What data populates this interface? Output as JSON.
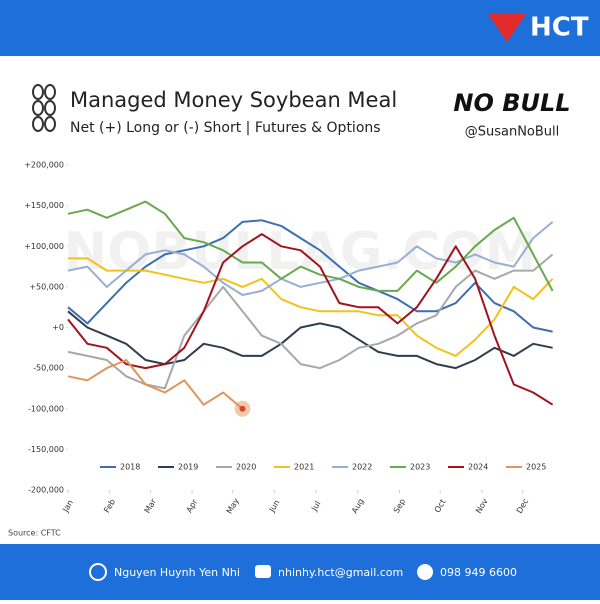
{
  "brand": {
    "logo": "HCT",
    "author": "Nguyen Huynh Yen Nhi",
    "email": "nhinhy.hct@gmail.com",
    "phone": "098 949 6600",
    "nobull": "NO BULL",
    "handle": "@SusanNoBull",
    "watermark": "NOBULLAG.COM",
    "source": "Source: CFTC"
  },
  "chart_data": {
    "type": "line",
    "title": "Managed Money Soybean Meal",
    "subtitle": "Net (+) Long or (-) Short | Futures & Options",
    "x": [
      0,
      2,
      4,
      6,
      8,
      10,
      12,
      14,
      16,
      18,
      20,
      22,
      24,
      26,
      28,
      30,
      32,
      34,
      36,
      38,
      40,
      42,
      44,
      46,
      48,
      50
    ],
    "xlim": [
      0,
      52
    ],
    "xticks": [
      {
        "value": 0,
        "label": "Jan"
      },
      {
        "value": 4.3,
        "label": "Feb"
      },
      {
        "value": 8.5,
        "label": "Mar"
      },
      {
        "value": 12.8,
        "label": "Apr"
      },
      {
        "value": 17,
        "label": "May"
      },
      {
        "value": 21.3,
        "label": "Jun"
      },
      {
        "value": 25.6,
        "label": "Jul"
      },
      {
        "value": 29.9,
        "label": "Aug"
      },
      {
        "value": 34.2,
        "label": "Sep"
      },
      {
        "value": 38.4,
        "label": "Oct"
      },
      {
        "value": 42.7,
        "label": "Nov"
      },
      {
        "value": 46.9,
        "label": "Dec"
      }
    ],
    "ylim": [
      -200000,
      200000
    ],
    "yticks": [
      {
        "value": 200000,
        "label": "+200,000"
      },
      {
        "value": 150000,
        "label": "+150,000"
      },
      {
        "value": 100000,
        "label": "+100,000"
      },
      {
        "value": 50000,
        "label": "+50,000"
      },
      {
        "value": 0,
        "label": "+0"
      },
      {
        "value": -50000,
        "label": "-50,000"
      },
      {
        "value": -100000,
        "label": "-100,000"
      },
      {
        "value": -150000,
        "label": "-150,000"
      },
      {
        "value": -200000,
        "label": "-200,000"
      }
    ],
    "legend": "bottom",
    "series": [
      {
        "name": "2018",
        "color": "#3d6fb0",
        "values": [
          25000,
          5000,
          30000,
          55000,
          75000,
          90000,
          95000,
          100000,
          110000,
          130000,
          132000,
          125000,
          110000,
          95000,
          75000,
          55000,
          45000,
          35000,
          20000,
          20000,
          30000,
          55000,
          30000,
          20000,
          0,
          -5000
        ]
      },
      {
        "name": "2019",
        "color": "#2f3e4f",
        "values": [
          20000,
          0,
          -10000,
          -20000,
          -40000,
          -45000,
          -40000,
          -20000,
          -25000,
          -35000,
          -35000,
          -20000,
          0,
          5000,
          0,
          -15000,
          -30000,
          -35000,
          -35000,
          -45000,
          -50000,
          -40000,
          -25000,
          -35000,
          -20000,
          -25000
        ]
      },
      {
        "name": "2020",
        "color": "#a8a8a8",
        "values": [
          -30000,
          -35000,
          -40000,
          -60000,
          -70000,
          -75000,
          -10000,
          20000,
          50000,
          20000,
          -10000,
          -20000,
          -45000,
          -50000,
          -40000,
          -25000,
          -20000,
          -10000,
          5000,
          15000,
          50000,
          70000,
          60000,
          70000,
          70000,
          90000
        ]
      },
      {
        "name": "2021",
        "color": "#f2c21b",
        "values": [
          85000,
          85000,
          70000,
          70000,
          70000,
          65000,
          60000,
          55000,
          60000,
          50000,
          60000,
          35000,
          25000,
          20000,
          20000,
          20000,
          15000,
          15000,
          -10000,
          -25000,
          -35000,
          -15000,
          10000,
          50000,
          35000,
          60000
        ]
      },
      {
        "name": "2022",
        "color": "#98aed3",
        "values": [
          70000,
          75000,
          50000,
          70000,
          90000,
          95000,
          90000,
          75000,
          55000,
          40000,
          45000,
          60000,
          50000,
          55000,
          60000,
          70000,
          75000,
          80000,
          100000,
          85000,
          80000,
          90000,
          80000,
          75000,
          110000,
          130000
        ]
      },
      {
        "name": "2023",
        "color": "#6aa84f",
        "values": [
          140000,
          145000,
          135000,
          145000,
          155000,
          140000,
          110000,
          105000,
          95000,
          80000,
          80000,
          60000,
          75000,
          65000,
          60000,
          50000,
          45000,
          45000,
          70000,
          55000,
          75000,
          100000,
          120000,
          135000,
          90000,
          45000
        ]
      },
      {
        "name": "2024",
        "color": "#a0141e",
        "values": [
          10000,
          -20000,
          -25000,
          -45000,
          -50000,
          -45000,
          -25000,
          20000,
          80000,
          100000,
          115000,
          100000,
          95000,
          75000,
          30000,
          25000,
          25000,
          5000,
          25000,
          60000,
          100000,
          60000,
          -10000,
          -70000,
          -80000,
          -95000
        ]
      },
      {
        "name": "2025",
        "color": "#e0955a",
        "values": [
          -60000,
          -65000,
          -50000,
          -40000,
          -70000,
          -80000,
          -65000,
          -95000,
          -80000,
          -100000,
          null,
          null,
          null,
          null,
          null,
          null,
          null,
          null,
          null,
          null,
          null,
          null,
          null,
          null,
          null,
          null
        ]
      }
    ]
  }
}
